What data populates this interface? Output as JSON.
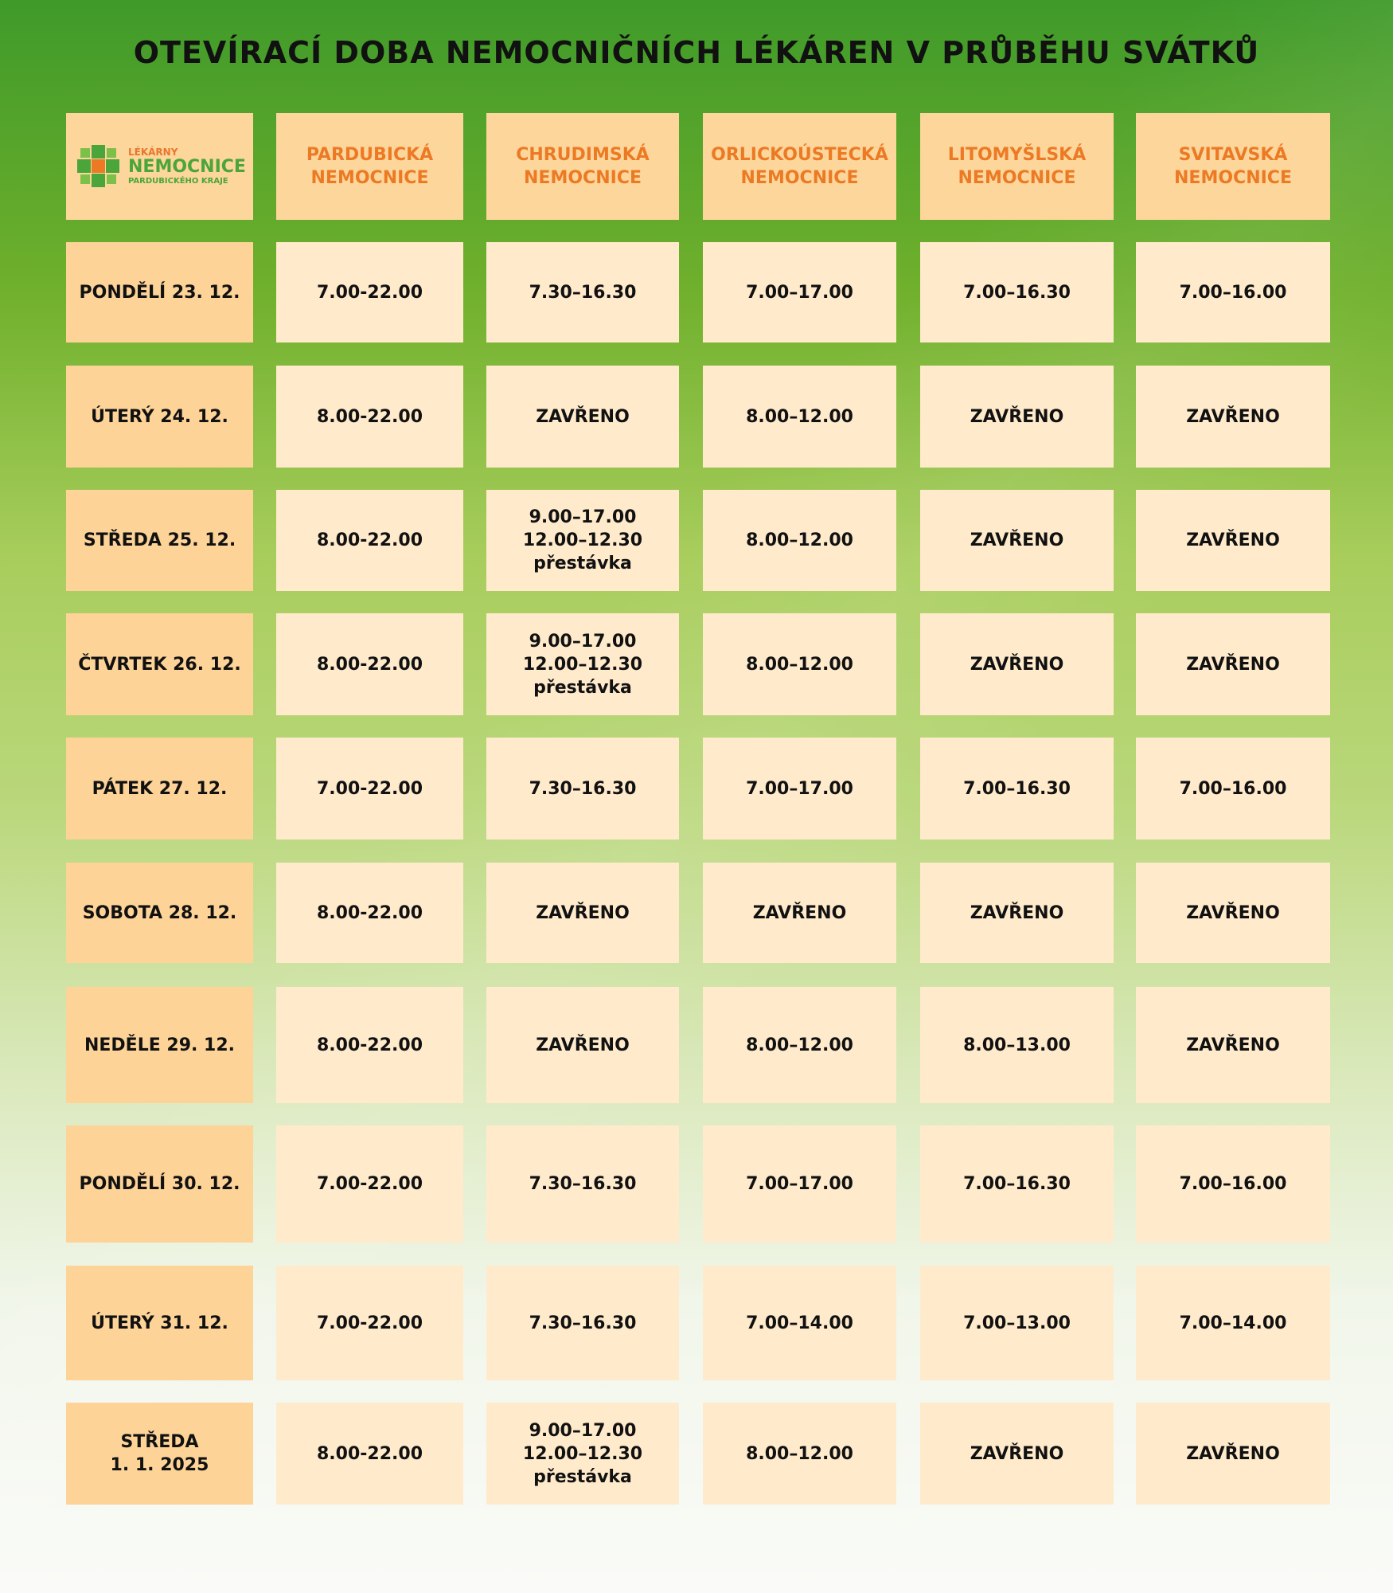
{
  "title": "OTEVÍRACÍ DOBA NEMOCNIČNÍCH LÉKÁREN V PRŮBĚHU SVÁTKŮ",
  "logo": [
    "LÉKÁRNY",
    "NEMOCNICE",
    "PARDUBICKÉHO KRAJE"
  ],
  "headers": [
    [
      "PARDUBICKÁ",
      "NEMOCNICE"
    ],
    [
      "CHRUDIMSKÁ",
      "NEMOCNICE"
    ],
    [
      "ORLICKOÚSTECKÁ",
      "NEMOCNICE"
    ],
    [
      "LITOMYŠLSKÁ",
      "NEMOCNICE"
    ],
    [
      "SVITAVSKÁ",
      "NEMOCNICE"
    ]
  ],
  "rows": [
    {
      "day": [
        "PONDĚLÍ 23. 12."
      ],
      "cells": [
        [
          "7.00-22.00"
        ],
        [
          "7.30–16.30"
        ],
        [
          "7.00–17.00"
        ],
        [
          "7.00–16.30"
        ],
        [
          "7.00–16.00"
        ]
      ]
    },
    {
      "day": [
        "ÚTERÝ 24. 12."
      ],
      "cells": [
        [
          "8.00-22.00"
        ],
        [
          "ZAVŘENO"
        ],
        [
          "8.00–12.00"
        ],
        [
          "ZAVŘENO"
        ],
        [
          "ZAVŘENO"
        ]
      ]
    },
    {
      "day": [
        "STŘEDA 25. 12."
      ],
      "cells": [
        [
          "8.00-22.00"
        ],
        [
          "9.00–17.00",
          "12.00–12.30",
          "přestávka"
        ],
        [
          "8.00–12.00"
        ],
        [
          "ZAVŘENO"
        ],
        [
          "ZAVŘENO"
        ]
      ]
    },
    {
      "day": [
        "ČTVRTEK 26. 12."
      ],
      "cells": [
        [
          "8.00-22.00"
        ],
        [
          "9.00–17.00",
          "12.00–12.30",
          "přestávka"
        ],
        [
          "8.00–12.00"
        ],
        [
          "ZAVŘENO"
        ],
        [
          "ZAVŘENO"
        ]
      ]
    },
    {
      "day": [
        "PÁTEK 27. 12."
      ],
      "cells": [
        [
          "7.00-22.00"
        ],
        [
          "7.30–16.30"
        ],
        [
          "7.00–17.00"
        ],
        [
          "7.00–16.30"
        ],
        [
          "7.00–16.00"
        ]
      ]
    },
    {
      "day": [
        "SOBOTA 28. 12."
      ],
      "cells": [
        [
          "8.00-22.00"
        ],
        [
          "ZAVŘENO"
        ],
        [
          "ZAVŘENO"
        ],
        [
          "ZAVŘENO"
        ],
        [
          "ZAVŘENO"
        ]
      ]
    },
    {
      "day": [
        "NEDĚLE 29. 12."
      ],
      "cells": [
        [
          "8.00-22.00"
        ],
        [
          "ZAVŘENO"
        ],
        [
          "8.00–12.00"
        ],
        [
          "8.00–13.00"
        ],
        [
          "ZAVŘENO"
        ]
      ]
    },
    {
      "day": [
        "PONDĚLÍ 30. 12."
      ],
      "cells": [
        [
          "7.00-22.00"
        ],
        [
          "7.30–16.30"
        ],
        [
          "7.00–17.00"
        ],
        [
          "7.00–16.30"
        ],
        [
          "7.00–16.00"
        ]
      ]
    },
    {
      "day": [
        "ÚTERÝ 31. 12."
      ],
      "cells": [
        [
          "7.00-22.00"
        ],
        [
          "7.30–16.30"
        ],
        [
          "7.00–14.00"
        ],
        [
          "7.00–13.00"
        ],
        [
          "7.00–14.00"
        ]
      ]
    },
    {
      "day": [
        "STŘEDA",
        "1. 1. 2025"
      ],
      "cells": [
        [
          "8.00-22.00"
        ],
        [
          "9.00–17.00",
          "12.00–12.30",
          "přestávka"
        ],
        [
          "8.00–12.00"
        ],
        [
          "ZAVŘENO"
        ],
        [
          "ZAVŘENO"
        ]
      ]
    }
  ]
}
